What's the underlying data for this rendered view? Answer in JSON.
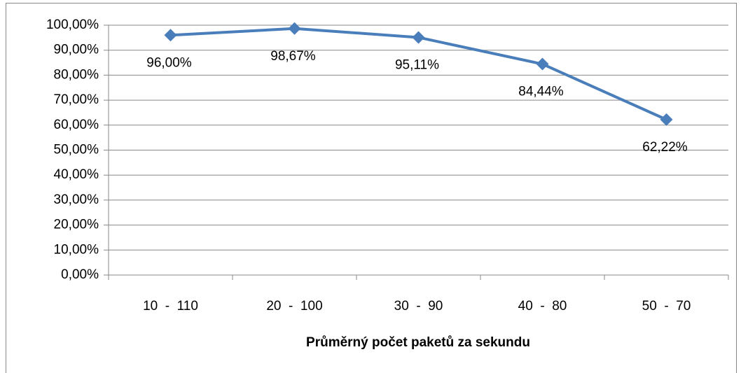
{
  "chart_data": {
    "type": "line",
    "x_label": "Průměrný počet paketů za sekundu",
    "categories": [
      "10  -  110",
      "20  -  100",
      "30  -  90",
      "40  -  80",
      "50  -  70"
    ],
    "series": [
      {
        "color": "#4a7ebb",
        "values": [
          96,
          98.67,
          95.11,
          84.44,
          62.22
        ],
        "value_labels": [
          "96,00%",
          "98,67%",
          "95,11%",
          "84,44%",
          "62,22%"
        ]
      }
    ],
    "ylim": [
      0,
      100
    ],
    "yticks": [
      {
        "value": 0,
        "label": "0,00%"
      },
      {
        "value": 10,
        "label": "10,00%"
      },
      {
        "value": 20,
        "label": "20,00%"
      },
      {
        "value": 30,
        "label": "30,00%"
      },
      {
        "value": 40,
        "label": "40,00%"
      },
      {
        "value": 50,
        "label": "50,00%"
      },
      {
        "value": 60,
        "label": "60,00%"
      },
      {
        "value": 70,
        "label": "70,00%"
      },
      {
        "value": 80,
        "label": "80,00%"
      },
      {
        "value": 90,
        "label": "90,00%"
      },
      {
        "value": 100,
        "label": "100,00%"
      }
    ],
    "grid": true
  }
}
